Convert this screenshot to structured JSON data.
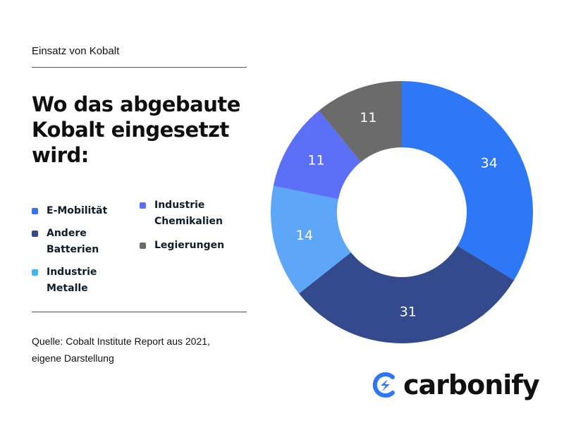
{
  "header": {
    "eyebrow": "Einsatz von Kobalt"
  },
  "title_lines": [
    "Wo das abgebaute",
    "Kobalt eingesetzt",
    "wird:"
  ],
  "legend": [
    {
      "line1": "E-Mobilität",
      "line2": "",
      "color": "#2e78f8"
    },
    {
      "line1": "Andere",
      "line2": "Batterien",
      "color": "#334a8d"
    },
    {
      "line1": "Industrie",
      "line2": "Metalle",
      "color": "#38b6f8"
    },
    {
      "line1": "Industrie",
      "line2": "Chemikalien",
      "color": "#5b6ff7"
    },
    {
      "line1": "Legierungen",
      "line2": "",
      "color": "#6b6b6b"
    }
  ],
  "source": {
    "line1": "Quelle: Cobalt Institute Report aus 2021,",
    "line2": "eigene Darstellung"
  },
  "logo": {
    "text": "carbonify",
    "icon": "carbonify-logo-icon",
    "color": "#2e78f8"
  },
  "chart_data": {
    "type": "pie",
    "variant": "donut",
    "title": "Wo das abgebaute Kobalt eingesetzt wird:",
    "slices": [
      {
        "label": "E-Mobilität",
        "value": 34,
        "color": "#2e78f8"
      },
      {
        "label": "Andere Batterien",
        "value": 31,
        "color": "#334a8d"
      },
      {
        "label": "Industrie Metalle",
        "value": 14,
        "color": "#5ea7f8"
      },
      {
        "label": "Industrie Chemikalien",
        "value": 11,
        "color": "#5b6ff7"
      },
      {
        "label": "Legierungen",
        "value": 11,
        "color": "#6b6b6b"
      }
    ]
  }
}
